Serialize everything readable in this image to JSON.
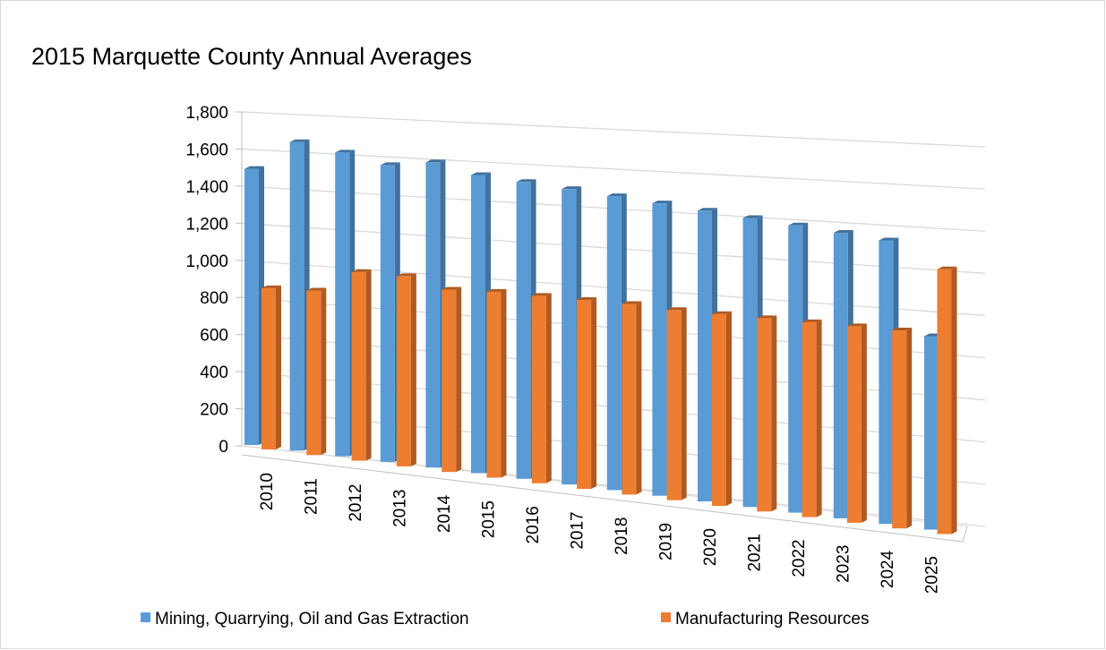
{
  "chart_data": {
    "type": "bar3d",
    "title": "2015 Marquette County Annual Averages",
    "categories": [
      "2010",
      "2011",
      "2012",
      "2013",
      "2014",
      "2015",
      "2016",
      "2017",
      "2018",
      "2019",
      "2020",
      "2021",
      "2022",
      "2023",
      "2024",
      "2025"
    ],
    "series": [
      {
        "name": "Mining, Quarrying, Oil and Gas Extraction",
        "color": "#5b9bd5",
        "side_color": "#41719c",
        "values": [
          1490,
          1650,
          1610,
          1560,
          1590,
          1540,
          1520,
          1500,
          1480,
          1460,
          1440,
          1420,
          1400,
          1380,
          1360,
          920
        ]
      },
      {
        "name": "Manufacturing Resources",
        "color": "#ed7d31",
        "side_color": "#ae5a21",
        "values": [
          870,
          880,
          1000,
          1000,
          950,
          960,
          960,
          960,
          960,
          950,
          950,
          950,
          950,
          950,
          950,
          1260
        ]
      }
    ],
    "ylim": [
      0,
      1800
    ],
    "yticks": [
      0,
      200,
      400,
      600,
      800,
      {
        "value": 1000,
        "label": "1,000"
      },
      {
        "value": 1200,
        "label": "1,200"
      },
      {
        "value": 1400,
        "label": "1,400"
      },
      {
        "value": 1600,
        "label": "1,600"
      },
      {
        "value": 1800,
        "label": "1,800"
      }
    ],
    "grid": true,
    "legend": "bottom"
  }
}
